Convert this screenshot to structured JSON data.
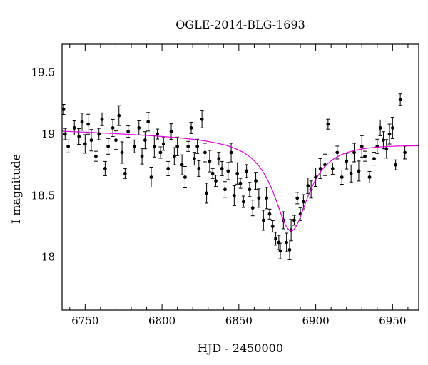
{
  "chart_data": {
    "type": "scatter",
    "title": "OGLE-2014-BLG-1693",
    "xlabel": "HJD - 2450000",
    "ylabel": "I magnitude",
    "xlim": [
      6735,
      6967
    ],
    "ylim": [
      19.73,
      17.57
    ],
    "y_inverted": true,
    "grid": false,
    "legend": "none",
    "x_ticks": [
      6750,
      6800,
      6850,
      6900,
      6950
    ],
    "y_ticks": [
      18,
      18.5,
      19,
      19.5
    ],
    "colors": {
      "points": "#000000",
      "model": "#e000e0",
      "frame": "#000000"
    },
    "model": {
      "name": "",
      "t0": 6884,
      "baseline": 19.03,
      "peak": 18.28,
      "tE": 14,
      "slope_per_day": -0.00045
    },
    "points": [
      {
        "x": 6736,
        "y": 19.2
      },
      {
        "x": 6737,
        "y": 19.0
      },
      {
        "x": 6739,
        "y": 18.9
      },
      {
        "x": 6743,
        "y": 19.05
      },
      {
        "x": 6746,
        "y": 18.98
      },
      {
        "x": 6748,
        "y": 19.1
      },
      {
        "x": 6750,
        "y": 18.92
      },
      {
        "x": 6752,
        "y": 19.08
      },
      {
        "x": 6754,
        "y": 18.95
      },
      {
        "x": 6757,
        "y": 18.82
      },
      {
        "x": 6759,
        "y": 19.0
      },
      {
        "x": 6761,
        "y": 19.12
      },
      {
        "x": 6763,
        "y": 18.72
      },
      {
        "x": 6765,
        "y": 18.9
      },
      {
        "x": 6768,
        "y": 19.05
      },
      {
        "x": 6770,
        "y": 18.95
      },
      {
        "x": 6772,
        "y": 19.15
      },
      {
        "x": 6774,
        "y": 18.85
      },
      {
        "x": 6776,
        "y": 18.68
      },
      {
        "x": 6778,
        "y": 19.02
      },
      {
        "x": 6782,
        "y": 18.9
      },
      {
        "x": 6785,
        "y": 19.05
      },
      {
        "x": 6787,
        "y": 18.82
      },
      {
        "x": 6789,
        "y": 18.95
      },
      {
        "x": 6791,
        "y": 19.1
      },
      {
        "x": 6793,
        "y": 18.65
      },
      {
        "x": 6795,
        "y": 18.9
      },
      {
        "x": 6797,
        "y": 19.0
      },
      {
        "x": 6799,
        "y": 18.85
      },
      {
        "x": 6801,
        "y": 18.92
      },
      {
        "x": 6804,
        "y": 18.72
      },
      {
        "x": 6806,
        "y": 19.02
      },
      {
        "x": 6808,
        "y": 18.82
      },
      {
        "x": 6810,
        "y": 18.9
      },
      {
        "x": 6813,
        "y": 18.75
      },
      {
        "x": 6815,
        "y": 18.65
      },
      {
        "x": 6817,
        "y": 18.9
      },
      {
        "x": 6819,
        "y": 19.05
      },
      {
        "x": 6821,
        "y": 18.8
      },
      {
        "x": 6823,
        "y": 18.9
      },
      {
        "x": 6824,
        "y": 18.72
      },
      {
        "x": 6826,
        "y": 19.12
      },
      {
        "x": 6828,
        "y": 18.85
      },
      {
        "x": 6829,
        "y": 18.52
      },
      {
        "x": 6831,
        "y": 18.78
      },
      {
        "x": 6833,
        "y": 18.68
      },
      {
        "x": 6835,
        "y": 18.62
      },
      {
        "x": 6837,
        "y": 18.8
      },
      {
        "x": 6839,
        "y": 18.72
      },
      {
        "x": 6841,
        "y": 18.55
      },
      {
        "x": 6843,
        "y": 18.7
      },
      {
        "x": 6845,
        "y": 18.85
      },
      {
        "x": 6847,
        "y": 18.5
      },
      {
        "x": 6849,
        "y": 18.68
      },
      {
        "x": 6851,
        "y": 18.6
      },
      {
        "x": 6853,
        "y": 18.45
      },
      {
        "x": 6855,
        "y": 18.7
      },
      {
        "x": 6857,
        "y": 18.55
      },
      {
        "x": 6859,
        "y": 18.4
      },
      {
        "x": 6861,
        "y": 18.62
      },
      {
        "x": 6863,
        "y": 18.48
      },
      {
        "x": 6866,
        "y": 18.3
      },
      {
        "x": 6868,
        "y": 18.48
      },
      {
        "x": 6870,
        "y": 18.35
      },
      {
        "x": 6872,
        "y": 18.25
      },
      {
        "x": 6874,
        "y": 18.15
      },
      {
        "x": 6876,
        "y": 18.12
      },
      {
        "x": 6877,
        "y": 18.05
      },
      {
        "x": 6879,
        "y": 18.3
      },
      {
        "x": 6881,
        "y": 18.12
      },
      {
        "x": 6883,
        "y": 18.06
      },
      {
        "x": 6884,
        "y": 18.22
      },
      {
        "x": 6886,
        "y": 18.3
      },
      {
        "x": 6888,
        "y": 18.48
      },
      {
        "x": 6890,
        "y": 18.35
      },
      {
        "x": 6892,
        "y": 18.45
      },
      {
        "x": 6895,
        "y": 18.58
      },
      {
        "x": 6897,
        "y": 18.55
      },
      {
        "x": 6900,
        "y": 18.65
      },
      {
        "x": 6903,
        "y": 18.72
      },
      {
        "x": 6906,
        "y": 18.75
      },
      {
        "x": 6908,
        "y": 19.08
      },
      {
        "x": 6911,
        "y": 18.72
      },
      {
        "x": 6914,
        "y": 18.85
      },
      {
        "x": 6917,
        "y": 18.65
      },
      {
        "x": 6920,
        "y": 18.78
      },
      {
        "x": 6923,
        "y": 18.68
      },
      {
        "x": 6925,
        "y": 18.85
      },
      {
        "x": 6928,
        "y": 18.7
      },
      {
        "x": 6930,
        "y": 18.9
      },
      {
        "x": 6932,
        "y": 18.82
      },
      {
        "x": 6935,
        "y": 18.65
      },
      {
        "x": 6938,
        "y": 18.8
      },
      {
        "x": 6940,
        "y": 18.9
      },
      {
        "x": 6942,
        "y": 19.05
      },
      {
        "x": 6944,
        "y": 18.95
      },
      {
        "x": 6946,
        "y": 18.88
      },
      {
        "x": 6948,
        "y": 19.0
      },
      {
        "x": 6950,
        "y": 19.05
      },
      {
        "x": 6952,
        "y": 18.75
      },
      {
        "x": 6955,
        "y": 19.28
      },
      {
        "x": 6958,
        "y": 18.85
      }
    ]
  }
}
